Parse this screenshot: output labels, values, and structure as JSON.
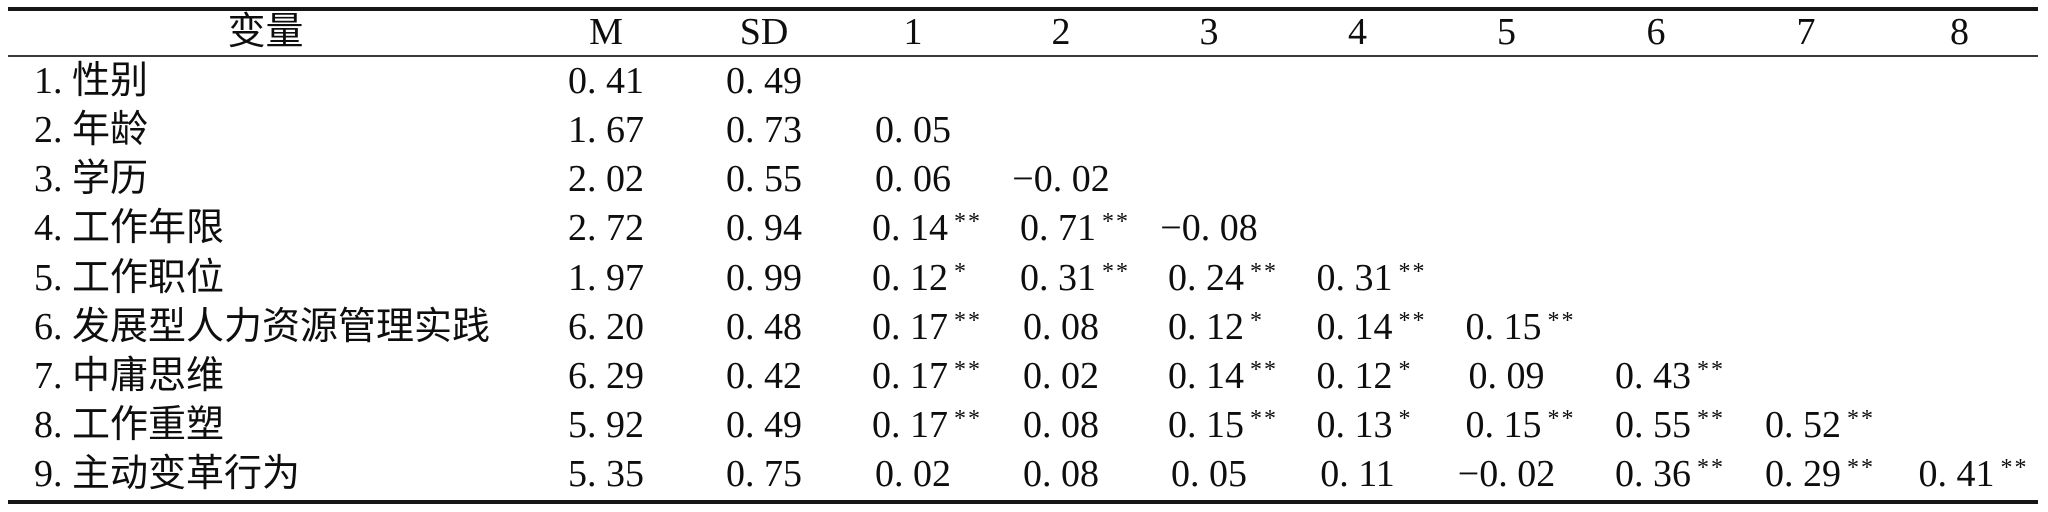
{
  "meta": {
    "background": "#ffffff",
    "text_color": "#0e0e0e",
    "rule_color": "#161616",
    "table_style": "three-line academic table"
  },
  "table": {
    "header": [
      "变量",
      "M",
      "SD",
      "1",
      "2",
      "3",
      "4",
      "5",
      "6",
      "7",
      "8"
    ],
    "rows": [
      {
        "label": "1. 性别",
        "cells": [
          "0. 41",
          "0. 49",
          "",
          "",
          "",
          "",
          "",
          "",
          "",
          ""
        ]
      },
      {
        "label": "2. 年龄",
        "cells": [
          "1. 67",
          "0. 73",
          "0. 05",
          "",
          "",
          "",
          "",
          "",
          "",
          ""
        ]
      },
      {
        "label": "3. 学历",
        "cells": [
          "2. 02",
          "0. 55",
          "0. 06",
          "−0. 02",
          "",
          "",
          "",
          "",
          "",
          ""
        ]
      },
      {
        "label": "4. 工作年限",
        "cells": [
          "2. 72",
          "0. 94",
          "0. 14**",
          "0. 71**",
          "−0. 08",
          "",
          "",
          "",
          "",
          ""
        ]
      },
      {
        "label": "5. 工作职位",
        "cells": [
          "1. 97",
          "0. 99",
          "0. 12*",
          "0. 31**",
          "0. 24**",
          "0. 31**",
          "",
          "",
          "",
          ""
        ]
      },
      {
        "label": "6. 发展型人力资源管理实践",
        "cells": [
          "6. 20",
          "0. 48",
          "0. 17**",
          "0. 08",
          "0. 12*",
          "0. 14**",
          "0. 15**",
          "",
          "",
          ""
        ]
      },
      {
        "label": "7. 中庸思维",
        "cells": [
          "6. 29",
          "0. 42",
          "0. 17**",
          "0. 02",
          "0. 14**",
          "0. 12*",
          "0. 09",
          "0. 43**",
          "",
          ""
        ]
      },
      {
        "label": "8. 工作重塑",
        "cells": [
          "5. 92",
          "0. 49",
          "0. 17**",
          "0. 08",
          "0. 15**",
          "0. 13*",
          "0. 15**",
          "0. 55**",
          "0. 52**",
          ""
        ]
      },
      {
        "label": "9. 主动变革行为",
        "cells": [
          "5. 35",
          "0. 75",
          "0. 02",
          "0. 08",
          "0. 05",
          "0. 11",
          "−0. 02",
          "0. 36**",
          "0. 29**",
          "0. 41**"
        ]
      }
    ]
  }
}
